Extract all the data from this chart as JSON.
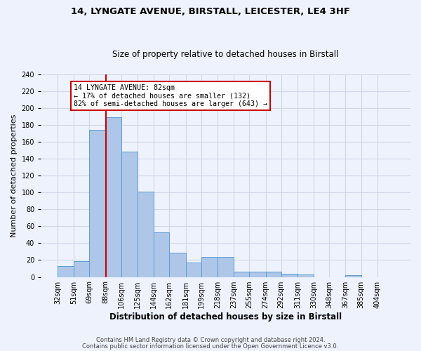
{
  "title1": "14, LYNGATE AVENUE, BIRSTALL, LEICESTER, LE4 3HF",
  "title2": "Size of property relative to detached houses in Birstall",
  "xlabel": "Distribution of detached houses by size in Birstall",
  "ylabel": "Number of detached properties",
  "footer1": "Contains HM Land Registry data © Crown copyright and database right 2024.",
  "footer2": "Contains public sector information licensed under the Open Government Licence v3.0.",
  "bins": [
    32,
    51,
    69,
    88,
    106,
    125,
    144,
    162,
    181,
    199,
    218,
    237,
    255,
    274,
    292,
    311,
    330,
    348,
    367,
    385,
    404
  ],
  "bin_labels": [
    "32sqm",
    "51sqm",
    "69sqm",
    "88sqm",
    "106sqm",
    "125sqm",
    "144sqm",
    "162sqm",
    "181sqm",
    "199sqm",
    "218sqm",
    "237sqm",
    "255sqm",
    "274sqm",
    "292sqm",
    "311sqm",
    "330sqm",
    "348sqm",
    "367sqm",
    "385sqm",
    "404sqm"
  ],
  "counts": [
    13,
    19,
    174,
    189,
    148,
    101,
    53,
    29,
    17,
    24,
    24,
    6,
    6,
    6,
    4,
    3,
    0,
    0,
    2,
    0,
    0
  ],
  "bar_color": "#aec6e8",
  "bar_edge_color": "#5a9fd4",
  "grid_color": "#d0d8e8",
  "vline_x": 88,
  "vline_color": "#cc0000",
  "annotation_text": "14 LYNGATE AVENUE: 82sqm\n← 17% of detached houses are smaller (132)\n82% of semi-detached houses are larger (643) →",
  "annotation_box_color": "#ffffff",
  "annotation_box_edge": "#cc0000",
  "ylim": [
    0,
    240
  ],
  "yticks": [
    0,
    20,
    40,
    60,
    80,
    100,
    120,
    140,
    160,
    180,
    200,
    220,
    240
  ],
  "background_color": "#eef2fc",
  "title1_fontsize": 9.5,
  "title2_fontsize": 8.5,
  "ylabel_fontsize": 8,
  "xlabel_fontsize": 8.5,
  "tick_fontsize": 7,
  "footer_fontsize": 6
}
